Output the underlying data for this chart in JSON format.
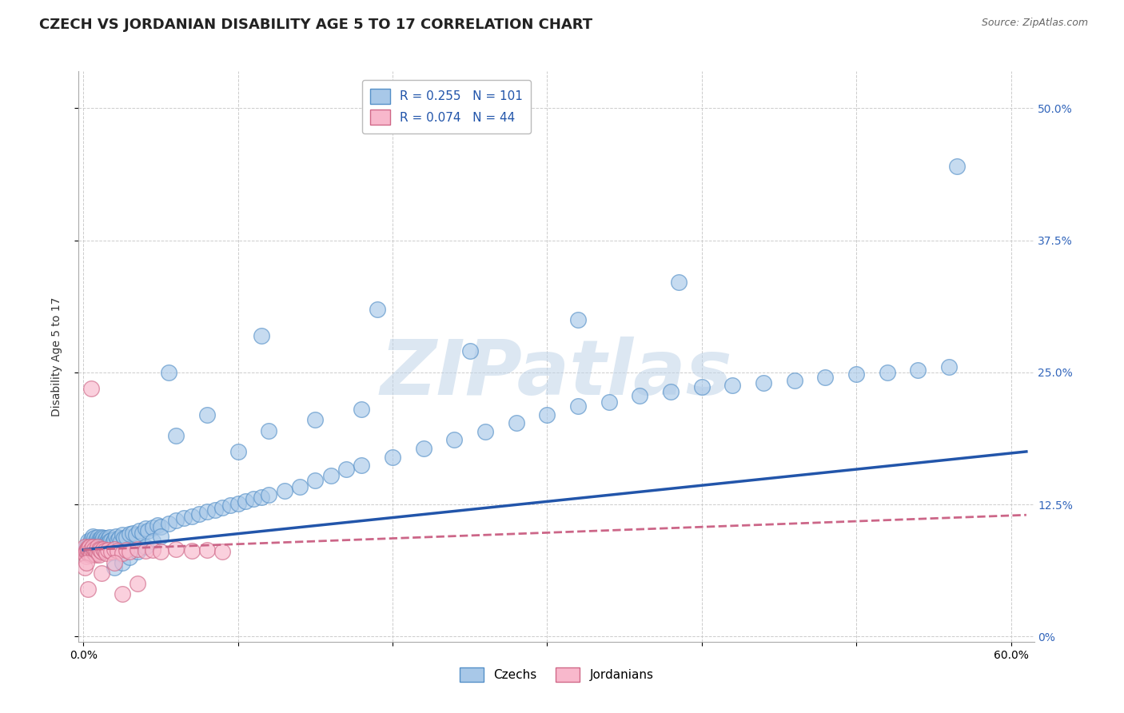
{
  "title": "CZECH VS JORDANIAN DISABILITY AGE 5 TO 17 CORRELATION CHART",
  "source_text": "Source: ZipAtlas.com",
  "ylabel": "Disability Age 5 to 17",
  "xlim": [
    -0.003,
    0.615
  ],
  "ylim": [
    -0.005,
    0.535
  ],
  "xtick_positions": [
    0.0,
    0.1,
    0.2,
    0.3,
    0.4,
    0.5,
    0.6
  ],
  "xtick_labels": [
    "0.0%",
    "",
    "",
    "",
    "",
    "",
    "60.0%"
  ],
  "ytick_positions": [
    0.0,
    0.125,
    0.25,
    0.375,
    0.5
  ],
  "ytick_labels_right": [
    "0%",
    "12.5%",
    "25.0%",
    "37.5%",
    "50.0%"
  ],
  "czech_R": 0.255,
  "czech_N": 101,
  "jordan_R": 0.074,
  "jordan_N": 44,
  "czech_face_color": "#a8c8e8",
  "czech_edge_color": "#5590c8",
  "jordan_face_color": "#f8b8cc",
  "jordan_edge_color": "#d06888",
  "czech_line_color": "#2255aa",
  "jordan_line_color": "#cc6688",
  "right_axis_color": "#3366bb",
  "legend_text_color": "#2255aa",
  "background_color": "#ffffff",
  "grid_color": "#cccccc",
  "watermark": "ZIPatlas",
  "watermark_color": "#c0d4e8",
  "title_fontsize": 13,
  "axis_label_fontsize": 10,
  "tick_fontsize": 10,
  "legend_fontsize": 11,
  "czech_x": [
    0.002,
    0.003,
    0.004,
    0.005,
    0.005,
    0.006,
    0.007,
    0.007,
    0.008,
    0.008,
    0.009,
    0.009,
    0.01,
    0.01,
    0.01,
    0.011,
    0.011,
    0.012,
    0.012,
    0.013,
    0.013,
    0.014,
    0.014,
    0.015,
    0.015,
    0.016,
    0.016,
    0.017,
    0.017,
    0.018,
    0.019,
    0.02,
    0.021,
    0.022,
    0.023,
    0.024,
    0.025,
    0.026,
    0.028,
    0.03,
    0.032,
    0.034,
    0.036,
    0.038,
    0.04,
    0.042,
    0.045,
    0.048,
    0.05,
    0.055,
    0.06,
    0.065,
    0.07,
    0.075,
    0.08,
    0.085,
    0.09,
    0.095,
    0.1,
    0.105,
    0.11,
    0.115,
    0.12,
    0.13,
    0.14,
    0.15,
    0.16,
    0.17,
    0.18,
    0.2,
    0.22,
    0.24,
    0.26,
    0.28,
    0.3,
    0.32,
    0.34,
    0.36,
    0.38,
    0.4,
    0.42,
    0.44,
    0.46,
    0.48,
    0.5,
    0.52,
    0.54,
    0.56,
    0.06,
    0.08,
    0.1,
    0.12,
    0.15,
    0.18,
    0.02,
    0.025,
    0.03,
    0.035,
    0.04,
    0.045,
    0.05
  ],
  "czech_y": [
    0.085,
    0.09,
    0.088,
    0.092,
    0.082,
    0.095,
    0.087,
    0.093,
    0.085,
    0.091,
    0.088,
    0.094,
    0.086,
    0.092,
    0.089,
    0.091,
    0.087,
    0.094,
    0.09,
    0.088,
    0.093,
    0.091,
    0.087,
    0.093,
    0.089,
    0.092,
    0.088,
    0.094,
    0.09,
    0.091,
    0.089,
    0.092,
    0.095,
    0.091,
    0.093,
    0.09,
    0.096,
    0.093,
    0.094,
    0.097,
    0.098,
    0.096,
    0.1,
    0.098,
    0.102,
    0.1,
    0.103,
    0.105,
    0.104,
    0.107,
    0.11,
    0.112,
    0.114,
    0.116,
    0.118,
    0.12,
    0.122,
    0.124,
    0.126,
    0.128,
    0.13,
    0.132,
    0.134,
    0.138,
    0.142,
    0.148,
    0.152,
    0.158,
    0.162,
    0.17,
    0.178,
    0.186,
    0.194,
    0.202,
    0.21,
    0.218,
    0.222,
    0.228,
    0.232,
    0.236,
    0.238,
    0.24,
    0.242,
    0.245,
    0.248,
    0.25,
    0.252,
    0.255,
    0.19,
    0.21,
    0.175,
    0.195,
    0.205,
    0.215,
    0.065,
    0.07,
    0.075,
    0.08,
    0.085,
    0.09,
    0.095
  ],
  "czech_outliers_x": [
    0.565,
    0.19,
    0.385,
    0.32,
    0.115,
    0.25,
    0.055
  ],
  "czech_outliers_y": [
    0.445,
    0.31,
    0.335,
    0.3,
    0.285,
    0.27,
    0.25
  ],
  "jordan_x": [
    0.001,
    0.001,
    0.002,
    0.002,
    0.002,
    0.003,
    0.003,
    0.003,
    0.004,
    0.004,
    0.004,
    0.005,
    0.005,
    0.005,
    0.006,
    0.006,
    0.007,
    0.007,
    0.008,
    0.008,
    0.009,
    0.009,
    0.01,
    0.01,
    0.011,
    0.012,
    0.013,
    0.014,
    0.015,
    0.016,
    0.018,
    0.02,
    0.022,
    0.025,
    0.028,
    0.03,
    0.035,
    0.04,
    0.045,
    0.05,
    0.06,
    0.07,
    0.08,
    0.09
  ],
  "jordan_y": [
    0.085,
    0.078,
    0.082,
    0.076,
    0.08,
    0.084,
    0.079,
    0.083,
    0.077,
    0.081,
    0.085,
    0.079,
    0.083,
    0.077,
    0.081,
    0.085,
    0.079,
    0.083,
    0.077,
    0.081,
    0.085,
    0.079,
    0.083,
    0.077,
    0.082,
    0.08,
    0.083,
    0.081,
    0.079,
    0.082,
    0.08,
    0.083,
    0.081,
    0.079,
    0.082,
    0.08,
    0.083,
    0.081,
    0.082,
    0.08,
    0.083,
    0.081,
    0.082,
    0.08
  ],
  "jordan_outliers_x": [
    0.005,
    0.02,
    0.012,
    0.035,
    0.001,
    0.002,
    0.003,
    0.025
  ],
  "jordan_outliers_y": [
    0.235,
    0.07,
    0.06,
    0.05,
    0.065,
    0.07,
    0.045,
    0.04
  ],
  "czech_trend_x0": 0.0,
  "czech_trend_x1": 0.61,
  "czech_trend_y0": 0.082,
  "czech_trend_y1": 0.175,
  "jordan_trend_x0": 0.0,
  "jordan_trend_x1": 0.61,
  "jordan_trend_y0": 0.082,
  "jordan_trend_y1": 0.115
}
